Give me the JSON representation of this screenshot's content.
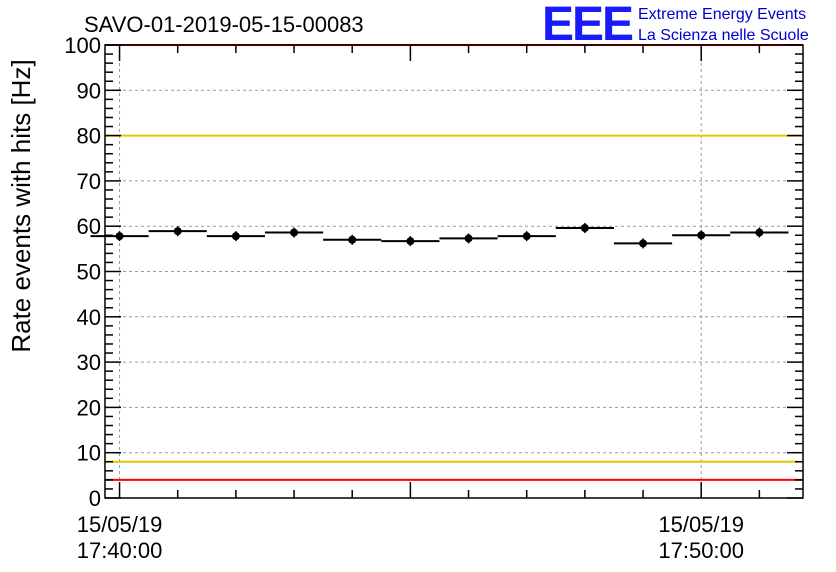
{
  "chart_data": {
    "type": "scatter",
    "title": "SAVO-01-2019-05-15-00083",
    "ylabel": "Rate events with hits [Hz]",
    "xlabel": "",
    "ylim": [
      0,
      100
    ],
    "yticks": [
      0,
      10,
      20,
      30,
      40,
      50,
      60,
      70,
      80,
      90,
      100
    ],
    "xlim_minutes": [
      -0.25,
      11.75
    ],
    "xticks": [
      {
        "minute": 0,
        "date": "15/05/19",
        "time": "17:40:00"
      },
      {
        "minute": 10,
        "date": "15/05/19",
        "time": "17:50:00"
      }
    ],
    "grid": true,
    "series": [
      {
        "name": "rate",
        "bin_width_minutes": 1,
        "x_minutes": [
          0,
          1,
          2,
          3,
          4,
          5,
          6,
          7,
          8,
          9,
          10,
          11
        ],
        "values": [
          57.8,
          58.9,
          57.8,
          58.6,
          57.0,
          56.7,
          57.3,
          57.8,
          59.6,
          56.2,
          58.0,
          58.6
        ]
      }
    ],
    "reference_lines": [
      {
        "y": 100,
        "color": "#ff0000"
      },
      {
        "y": 80,
        "color": "#e6c800"
      },
      {
        "y": 8,
        "color": "#e6c800"
      },
      {
        "y": 4,
        "color": "#ff0000"
      }
    ]
  },
  "logo": {
    "mark": "EEE",
    "line1": "Extreme Energy Events",
    "line2": "La Scienza nelle Scuole"
  }
}
